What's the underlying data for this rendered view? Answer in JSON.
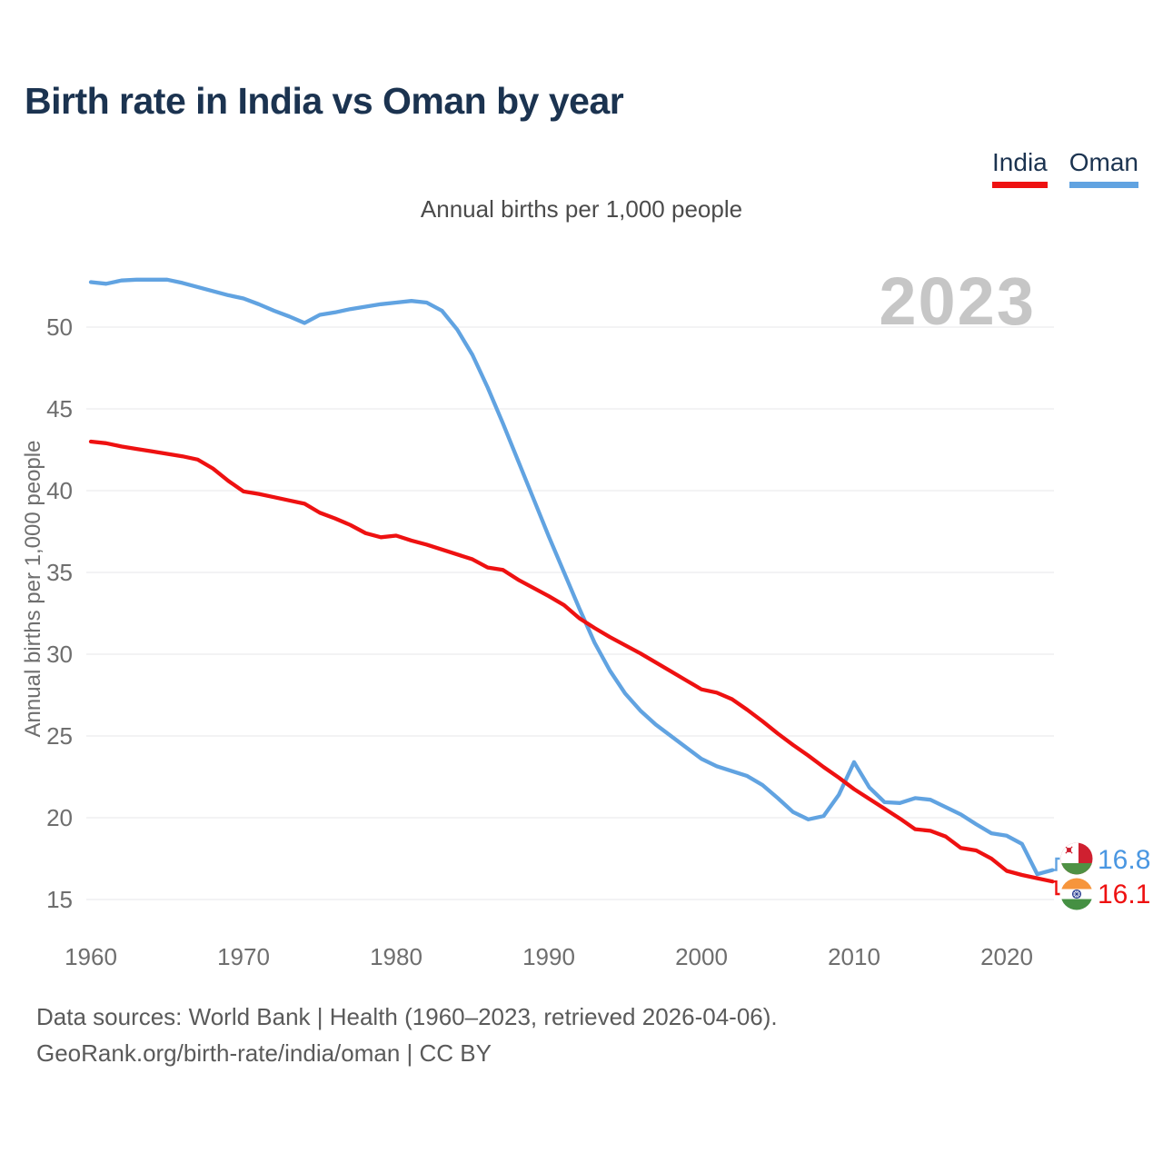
{
  "title": "Birth rate in India vs Oman by year",
  "subtitle": "Annual births per 1,000 people",
  "watermark": "2023",
  "legend": [
    {
      "label": "India",
      "color": "#ee1111"
    },
    {
      "label": "Oman",
      "color": "#61a3e1"
    }
  ],
  "y_axis": {
    "label": "Annual births per 1,000 people",
    "ticks": [
      15,
      20,
      25,
      30,
      35,
      40,
      45,
      50
    ]
  },
  "x_axis": {
    "ticks": [
      1960,
      1970,
      1980,
      1990,
      2000,
      2010,
      2020
    ]
  },
  "end_labels": [
    {
      "series": "Oman",
      "value": "16.8",
      "flag": "oman-flag",
      "color": "#4a97e2"
    },
    {
      "series": "India",
      "value": "16.1",
      "flag": "india-flag",
      "color": "#ee1111"
    }
  ],
  "footer": {
    "line1": "Data sources: World Bank | Health (1960–2023, retrieved 2026-04-06).",
    "line2": "GeoRank.org/birth-rate/india/oman | CC BY"
  },
  "chart_data": {
    "type": "line",
    "title": "Birth rate in India vs Oman by year",
    "xlabel": "",
    "ylabel": "Annual births per 1,000 people",
    "xlim": [
      1960,
      2023
    ],
    "ylim": [
      13.5,
      54.5
    ],
    "grid": "horizontal",
    "legend_position": "top-right",
    "x": [
      1960,
      1961,
      1962,
      1963,
      1964,
      1965,
      1966,
      1967,
      1968,
      1969,
      1970,
      1971,
      1972,
      1973,
      1974,
      1975,
      1976,
      1977,
      1978,
      1979,
      1980,
      1981,
      1982,
      1983,
      1984,
      1985,
      1986,
      1987,
      1988,
      1989,
      1990,
      1991,
      1992,
      1993,
      1994,
      1995,
      1996,
      1997,
      1998,
      1999,
      2000,
      2001,
      2002,
      2003,
      2004,
      2005,
      2006,
      2007,
      2008,
      2009,
      2010,
      2011,
      2012,
      2013,
      2014,
      2015,
      2016,
      2017,
      2018,
      2019,
      2020,
      2021,
      2022,
      2023
    ],
    "series": [
      {
        "name": "India",
        "color": "#ee1111",
        "values": [
          43.0,
          42.9,
          42.7,
          42.55,
          42.4,
          42.25,
          42.1,
          41.9,
          41.35,
          40.6,
          39.95,
          39.8,
          39.6,
          39.4,
          39.2,
          38.65,
          38.3,
          37.9,
          37.4,
          37.15,
          37.25,
          36.95,
          36.7,
          36.4,
          36.1,
          35.8,
          35.3,
          35.15,
          34.55,
          34.05,
          33.55,
          33.0,
          32.2,
          31.6,
          31.05,
          30.55,
          30.05,
          29.5,
          28.95,
          28.4,
          27.85,
          27.65,
          27.25,
          26.6,
          25.9,
          25.15,
          24.45,
          23.8,
          23.1,
          22.45,
          21.75,
          21.15,
          20.55,
          19.95,
          19.3,
          19.2,
          18.85,
          18.15,
          18.0,
          17.5,
          16.75,
          16.5,
          16.3,
          16.1
        ]
      },
      {
        "name": "Oman",
        "color": "#61a3e1",
        "values": [
          52.75,
          52.65,
          52.85,
          52.9,
          52.9,
          52.9,
          52.7,
          52.45,
          52.2,
          51.95,
          51.75,
          51.4,
          51.0,
          50.65,
          50.25,
          50.75,
          50.9,
          51.1,
          51.25,
          51.4,
          51.5,
          51.6,
          51.5,
          51.0,
          49.85,
          48.3,
          46.3,
          44.1,
          41.8,
          39.5,
          37.2,
          35.0,
          32.8,
          30.7,
          29.0,
          27.6,
          26.55,
          25.7,
          25.0,
          24.3,
          23.6,
          23.15,
          22.85,
          22.55,
          22.0,
          21.2,
          20.35,
          19.9,
          20.1,
          21.4,
          23.4,
          21.85,
          20.95,
          20.9,
          21.2,
          21.1,
          20.65,
          20.2,
          19.6,
          19.05,
          18.9,
          18.4,
          16.55,
          16.8
        ]
      }
    ]
  }
}
